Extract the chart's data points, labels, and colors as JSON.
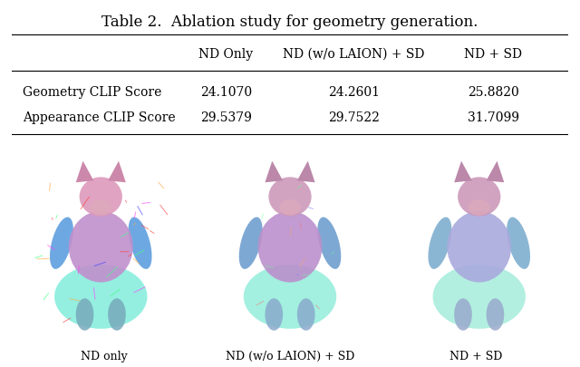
{
  "title": "Table 2.  Ablation study for geometry generation.",
  "columns": [
    "",
    "ND Only",
    "ND (w/o LAION) + SD",
    "ND + SD"
  ],
  "rows": [
    [
      "Geometry CLIP Score",
      "24.1070",
      "24.2601",
      "25.8820"
    ],
    [
      "Appearance CLIP Score",
      "29.5379",
      "29.7522",
      "31.7099"
    ]
  ],
  "image_captions": [
    "ND only",
    "ND (w/o LAION) + SD",
    "ND + SD"
  ],
  "bg_color": "#ffffff",
  "text_color": "#000000",
  "font_size_title": 12,
  "font_size_table": 10,
  "font_size_caption": 9
}
